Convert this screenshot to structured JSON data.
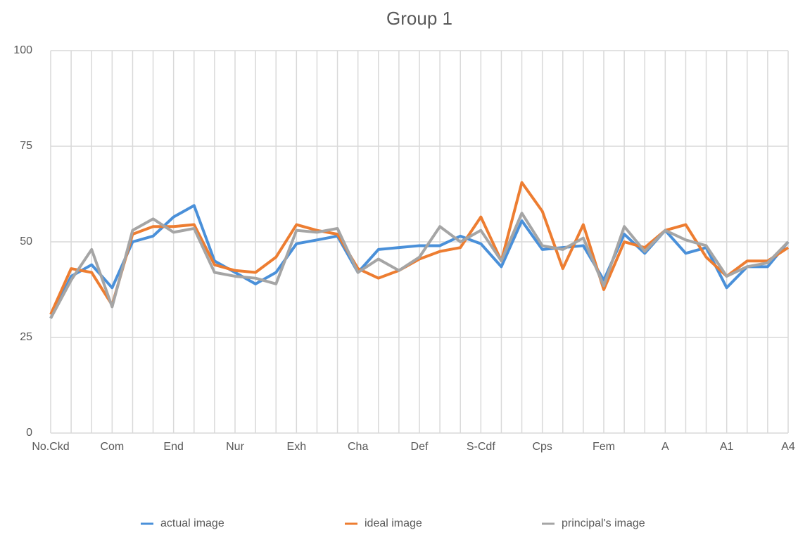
{
  "chart_data": {
    "type": "line",
    "title": "Group 1",
    "categories": [
      "No.Ckd",
      null,
      null,
      "Com",
      null,
      null,
      "End",
      null,
      null,
      "Nur",
      null,
      null,
      "Exh",
      null,
      null,
      "Cha",
      null,
      null,
      "Def",
      null,
      null,
      "S-Cdf",
      null,
      null,
      "Cps",
      null,
      null,
      "Fem",
      null,
      null,
      "A",
      null,
      null,
      "A1",
      null,
      null,
      "A4"
    ],
    "series": [
      {
        "name": "actual image",
        "color": "#4a90d9",
        "values": [
          30,
          41,
          44,
          38,
          50,
          51.5,
          56.5,
          59.5,
          45,
          42,
          39,
          42,
          49.5,
          50.5,
          51.5,
          42,
          48,
          48.5,
          49,
          49,
          51.5,
          49.5,
          43.5,
          55.5,
          48,
          48.5,
          49,
          40,
          52,
          47,
          53,
          47,
          48.5,
          38,
          43.5,
          43.5,
          50
        ]
      },
      {
        "name": "ideal image",
        "color": "#ed7d31",
        "values": [
          31,
          43,
          42,
          33.5,
          52,
          54,
          54,
          54.5,
          44,
          42.5,
          42,
          46,
          54.5,
          53,
          52,
          43,
          40.5,
          42.5,
          45.5,
          47.5,
          48.5,
          56.5,
          45,
          65.5,
          58,
          43,
          54.5,
          37.5,
          50,
          48.5,
          53,
          54.5,
          46,
          41,
          45,
          45,
          48.5
        ]
      },
      {
        "name": "principal's image",
        "color": "#a5a5a5",
        "values": [
          30,
          40,
          48,
          33,
          53,
          56,
          52.5,
          53.5,
          42,
          41,
          40.5,
          39,
          53,
          52.5,
          53.5,
          42,
          45.5,
          42.5,
          46,
          54,
          50,
          53,
          45,
          57.5,
          49,
          48,
          51,
          38.5,
          54,
          47.5,
          53,
          50.5,
          49,
          41,
          43.5,
          44.5,
          50
        ]
      }
    ],
    "ylim": [
      0,
      100
    ],
    "yticks": [
      0,
      25,
      50,
      75,
      100
    ],
    "grid": true,
    "legend": "bottom"
  }
}
